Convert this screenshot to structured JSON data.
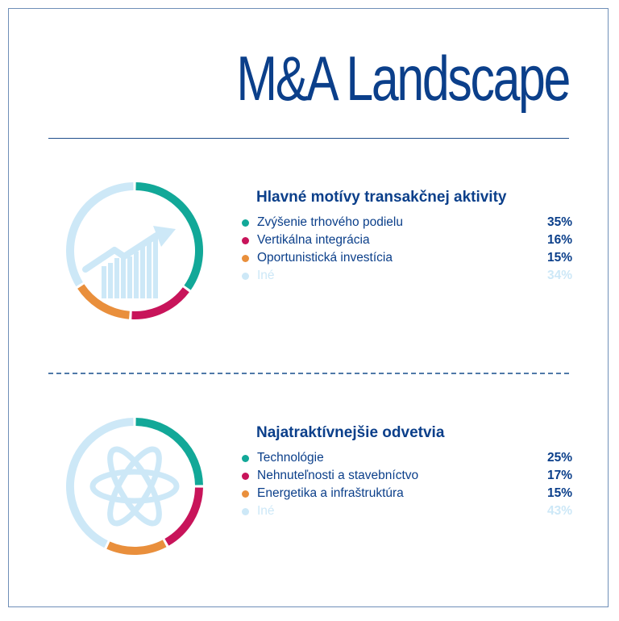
{
  "header": {
    "title": "M&A Landscape"
  },
  "colors": {
    "teal": "#12a898",
    "crimson": "#c8145a",
    "orange": "#e98f3c",
    "light": "#cde8f7",
    "navy": "#0b3f8a"
  },
  "chart_data": [
    {
      "type": "pie",
      "style": "donut",
      "icon": "growth-bar-chart-icon",
      "title": "Hlavné motívy transakčnej aktivity",
      "categories": [
        "Zvýšenie trhového podielu",
        "Vertikálna integrácia",
        "Oportunistická investícia",
        "Iné"
      ],
      "values": [
        35,
        16,
        15,
        34
      ],
      "labels": [
        "35%",
        "16%",
        "15%",
        "34%"
      ],
      "colors": [
        "#12a898",
        "#c8145a",
        "#e98f3c",
        "#cde8f7"
      ]
    },
    {
      "type": "pie",
      "style": "donut",
      "icon": "atom-icon",
      "title": "Najatraktívnejšie odvetvia",
      "categories": [
        "Technológie",
        "Nehnuteľnosti a stavebníctvo",
        "Energetika a infraštruktúra",
        "Iné"
      ],
      "values": [
        25,
        17,
        15,
        43
      ],
      "labels": [
        "25%",
        "17%",
        "15%",
        "43%"
      ],
      "colors": [
        "#12a898",
        "#c8145a",
        "#e98f3c",
        "#cde8f7"
      ]
    }
  ]
}
